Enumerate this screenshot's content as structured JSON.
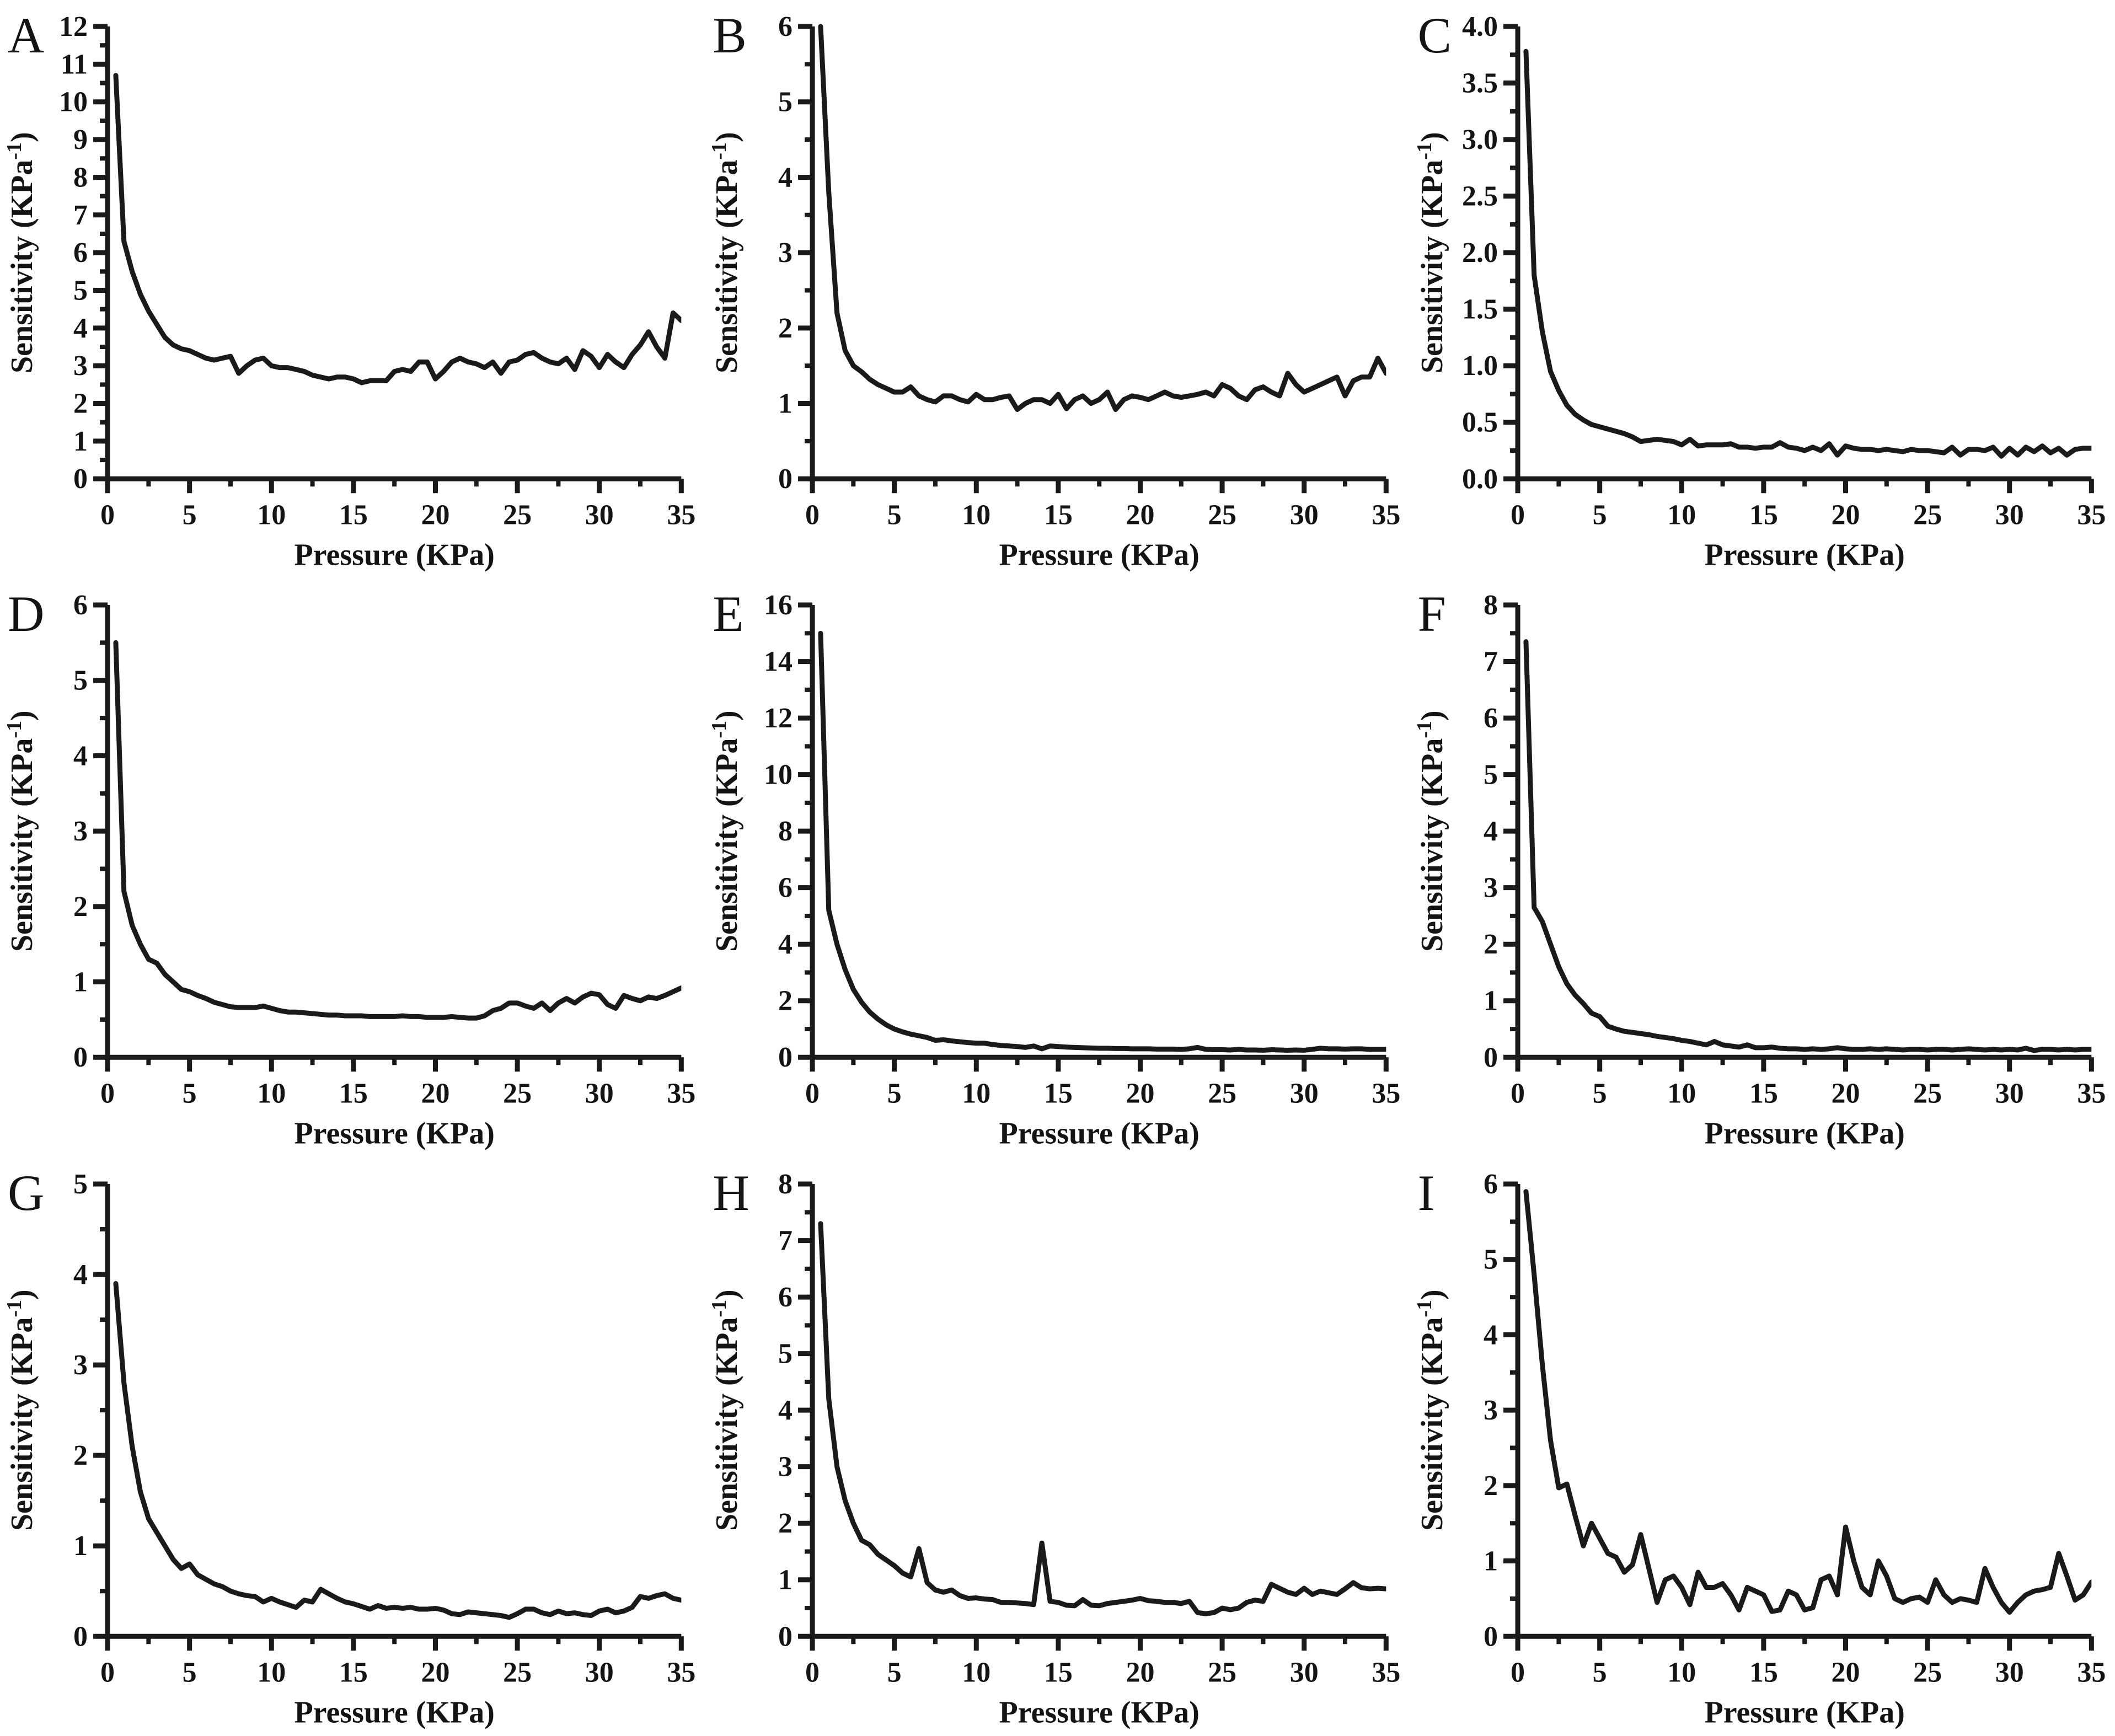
{
  "figure": {
    "description": "Nine-panel sensitivity versus pressure figure",
    "background": "#ffffff"
  },
  "chart_data": {
    "type": "line",
    "layout": "3x3-grid",
    "title": "",
    "xlabel": "Pressure (KPa)",
    "ylabel": "Sensitivity (KPa⁻¹)",
    "xlim": [
      0,
      35
    ],
    "xticks": [
      0,
      5,
      10,
      15,
      20,
      25,
      30,
      35
    ],
    "grid": "off",
    "legend": "none",
    "line_color": "#1a1a1a",
    "x": [
      0.5,
      1.0,
      1.5,
      2.0,
      2.5,
      3.0,
      3.5,
      4.0,
      4.5,
      5.0,
      5.5,
      6.0,
      6.5,
      7.0,
      7.5,
      8.0,
      8.5,
      9.0,
      9.5,
      10.0,
      10.5,
      11.0,
      11.5,
      12.0,
      12.5,
      13.0,
      13.5,
      14.0,
      14.5,
      15.0,
      15.5,
      16.0,
      16.5,
      17.0,
      17.5,
      18.0,
      18.5,
      19.0,
      19.5,
      20.0,
      20.5,
      21.0,
      21.5,
      22.0,
      22.5,
      23.0,
      23.5,
      24.0,
      24.5,
      25.0,
      25.5,
      26.0,
      26.5,
      27.0,
      27.5,
      28.0,
      28.5,
      29.0,
      29.5,
      30.0,
      30.5,
      31.0,
      31.5,
      32.0,
      32.5,
      33.0,
      33.5,
      34.0,
      34.5,
      35.0
    ],
    "panels": [
      {
        "label": "A",
        "ylim": [
          0,
          12
        ],
        "yticks": [
          0,
          1,
          2,
          3,
          4,
          5,
          6,
          7,
          8,
          9,
          10,
          11,
          12
        ],
        "ytick_decimals": 0,
        "y": [
          10.7,
          6.3,
          5.5,
          4.9,
          4.45,
          4.1,
          3.75,
          3.55,
          3.45,
          3.4,
          3.3,
          3.2,
          3.15,
          3.2,
          3.25,
          2.8,
          3.0,
          3.15,
          3.2,
          3.0,
          2.95,
          2.95,
          2.9,
          2.85,
          2.75,
          2.7,
          2.65,
          2.7,
          2.7,
          2.65,
          2.55,
          2.6,
          2.6,
          2.6,
          2.85,
          2.9,
          2.85,
          3.1,
          3.1,
          2.65,
          2.85,
          3.1,
          3.2,
          3.1,
          3.05,
          2.95,
          3.1,
          2.8,
          3.1,
          3.15,
          3.3,
          3.35,
          3.2,
          3.1,
          3.05,
          3.2,
          2.9,
          3.4,
          3.25,
          2.95,
          3.3,
          3.1,
          2.95,
          3.3,
          3.55,
          3.9,
          3.5,
          3.2,
          4.4,
          4.2
        ]
      },
      {
        "label": "B",
        "ylim": [
          0,
          6
        ],
        "yticks": [
          0,
          1,
          2,
          3,
          4,
          5,
          6
        ],
        "ytick_decimals": 0,
        "y": [
          6.0,
          3.8,
          2.2,
          1.7,
          1.5,
          1.42,
          1.32,
          1.25,
          1.2,
          1.15,
          1.15,
          1.22,
          1.1,
          1.05,
          1.02,
          1.1,
          1.1,
          1.05,
          1.02,
          1.12,
          1.05,
          1.05,
          1.08,
          1.1,
          0.92,
          1.0,
          1.05,
          1.05,
          1.0,
          1.12,
          0.93,
          1.05,
          1.1,
          1.0,
          1.05,
          1.15,
          0.92,
          1.05,
          1.1,
          1.08,
          1.05,
          1.1,
          1.15,
          1.1,
          1.08,
          1.1,
          1.12,
          1.15,
          1.1,
          1.25,
          1.2,
          1.1,
          1.05,
          1.18,
          1.22,
          1.15,
          1.1,
          1.4,
          1.25,
          1.15,
          1.2,
          1.25,
          1.3,
          1.35,
          1.1,
          1.3,
          1.35,
          1.35,
          1.6,
          1.4
        ]
      },
      {
        "label": "C",
        "ylim": [
          0,
          4
        ],
        "yticks": [
          0,
          0.5,
          1,
          1.5,
          2,
          2.5,
          3,
          3.5,
          4
        ],
        "ytick_decimals": 1,
        "y": [
          3.78,
          1.8,
          1.3,
          0.95,
          0.78,
          0.65,
          0.57,
          0.52,
          0.48,
          0.46,
          0.44,
          0.42,
          0.4,
          0.37,
          0.33,
          0.34,
          0.35,
          0.34,
          0.33,
          0.3,
          0.35,
          0.29,
          0.3,
          0.3,
          0.3,
          0.31,
          0.28,
          0.28,
          0.27,
          0.28,
          0.28,
          0.32,
          0.28,
          0.27,
          0.25,
          0.28,
          0.25,
          0.31,
          0.21,
          0.29,
          0.27,
          0.26,
          0.26,
          0.25,
          0.26,
          0.25,
          0.24,
          0.26,
          0.25,
          0.25,
          0.24,
          0.23,
          0.28,
          0.21,
          0.26,
          0.26,
          0.25,
          0.28,
          0.2,
          0.27,
          0.21,
          0.28,
          0.24,
          0.29,
          0.23,
          0.27,
          0.21,
          0.26,
          0.27,
          0.27
        ]
      },
      {
        "label": "D",
        "ylim": [
          0,
          6
        ],
        "yticks": [
          0,
          1,
          2,
          3,
          4,
          5,
          6
        ],
        "ytick_decimals": 0,
        "y": [
          5.5,
          2.2,
          1.75,
          1.5,
          1.3,
          1.25,
          1.1,
          1.0,
          0.9,
          0.87,
          0.82,
          0.78,
          0.73,
          0.7,
          0.67,
          0.66,
          0.66,
          0.66,
          0.68,
          0.65,
          0.62,
          0.6,
          0.6,
          0.59,
          0.58,
          0.57,
          0.56,
          0.56,
          0.55,
          0.55,
          0.55,
          0.54,
          0.54,
          0.54,
          0.54,
          0.55,
          0.54,
          0.54,
          0.53,
          0.53,
          0.53,
          0.54,
          0.53,
          0.52,
          0.52,
          0.55,
          0.62,
          0.65,
          0.72,
          0.72,
          0.68,
          0.65,
          0.72,
          0.62,
          0.72,
          0.78,
          0.72,
          0.8,
          0.85,
          0.83,
          0.7,
          0.65,
          0.82,
          0.78,
          0.75,
          0.8,
          0.78,
          0.82,
          0.87,
          0.92
        ]
      },
      {
        "label": "E",
        "ylim": [
          0,
          16
        ],
        "yticks": [
          0,
          2,
          4,
          6,
          8,
          10,
          12,
          14,
          16
        ],
        "ytick_decimals": 0,
        "y": [
          15.0,
          5.2,
          4.0,
          3.1,
          2.4,
          1.95,
          1.6,
          1.35,
          1.15,
          1.0,
          0.9,
          0.82,
          0.76,
          0.7,
          0.6,
          0.62,
          0.58,
          0.55,
          0.52,
          0.5,
          0.5,
          0.45,
          0.42,
          0.4,
          0.38,
          0.35,
          0.4,
          0.3,
          0.4,
          0.38,
          0.36,
          0.35,
          0.34,
          0.33,
          0.32,
          0.32,
          0.31,
          0.31,
          0.3,
          0.3,
          0.3,
          0.29,
          0.29,
          0.29,
          0.28,
          0.3,
          0.35,
          0.28,
          0.27,
          0.27,
          0.26,
          0.28,
          0.26,
          0.26,
          0.25,
          0.27,
          0.26,
          0.25,
          0.26,
          0.25,
          0.28,
          0.32,
          0.3,
          0.3,
          0.29,
          0.3,
          0.3,
          0.28,
          0.28,
          0.28
        ]
      },
      {
        "label": "F",
        "ylim": [
          0,
          8
        ],
        "yticks": [
          0,
          1,
          2,
          3,
          4,
          5,
          6,
          7,
          8
        ],
        "ytick_decimals": 0,
        "y": [
          7.35,
          2.65,
          2.4,
          2.0,
          1.6,
          1.3,
          1.1,
          0.95,
          0.78,
          0.72,
          0.55,
          0.5,
          0.46,
          0.44,
          0.42,
          0.4,
          0.37,
          0.35,
          0.33,
          0.3,
          0.28,
          0.25,
          0.22,
          0.28,
          0.22,
          0.2,
          0.18,
          0.22,
          0.17,
          0.17,
          0.18,
          0.16,
          0.15,
          0.15,
          0.14,
          0.15,
          0.14,
          0.15,
          0.17,
          0.15,
          0.14,
          0.14,
          0.15,
          0.14,
          0.15,
          0.14,
          0.13,
          0.14,
          0.14,
          0.13,
          0.14,
          0.14,
          0.13,
          0.14,
          0.15,
          0.14,
          0.13,
          0.14,
          0.13,
          0.14,
          0.13,
          0.16,
          0.12,
          0.14,
          0.14,
          0.13,
          0.14,
          0.13,
          0.14,
          0.14
        ]
      },
      {
        "label": "G",
        "ylim": [
          0,
          5
        ],
        "yticks": [
          0,
          1,
          2,
          3,
          4,
          5
        ],
        "ytick_decimals": 0,
        "y": [
          3.9,
          2.8,
          2.1,
          1.6,
          1.3,
          1.15,
          1.0,
          0.85,
          0.75,
          0.8,
          0.68,
          0.63,
          0.58,
          0.55,
          0.5,
          0.47,
          0.45,
          0.44,
          0.38,
          0.42,
          0.38,
          0.35,
          0.32,
          0.4,
          0.38,
          0.52,
          0.47,
          0.42,
          0.38,
          0.36,
          0.33,
          0.3,
          0.34,
          0.31,
          0.32,
          0.31,
          0.32,
          0.3,
          0.3,
          0.31,
          0.29,
          0.25,
          0.24,
          0.27,
          0.26,
          0.25,
          0.24,
          0.23,
          0.21,
          0.25,
          0.3,
          0.3,
          0.26,
          0.24,
          0.28,
          0.25,
          0.26,
          0.24,
          0.23,
          0.28,
          0.3,
          0.26,
          0.28,
          0.32,
          0.44,
          0.42,
          0.45,
          0.47,
          0.42,
          0.4
        ]
      },
      {
        "label": "H",
        "ylim": [
          0,
          8
        ],
        "yticks": [
          0,
          1,
          2,
          3,
          4,
          5,
          6,
          7,
          8
        ],
        "ytick_decimals": 0,
        "y": [
          7.3,
          4.2,
          3.0,
          2.4,
          2.0,
          1.7,
          1.62,
          1.45,
          1.35,
          1.25,
          1.12,
          1.05,
          1.55,
          0.95,
          0.82,
          0.78,
          0.82,
          0.72,
          0.67,
          0.68,
          0.66,
          0.65,
          0.6,
          0.6,
          0.59,
          0.58,
          0.56,
          1.65,
          0.62,
          0.6,
          0.55,
          0.54,
          0.65,
          0.55,
          0.54,
          0.58,
          0.6,
          0.62,
          0.64,
          0.67,
          0.63,
          0.62,
          0.6,
          0.6,
          0.58,
          0.62,
          0.42,
          0.4,
          0.42,
          0.5,
          0.47,
          0.5,
          0.6,
          0.64,
          0.62,
          0.92,
          0.85,
          0.78,
          0.74,
          0.85,
          0.74,
          0.8,
          0.77,
          0.74,
          0.84,
          0.95,
          0.86,
          0.84,
          0.85,
          0.84
        ]
      },
      {
        "label": "I",
        "ylim": [
          0,
          6
        ],
        "yticks": [
          0,
          1,
          2,
          3,
          4,
          5,
          6
        ],
        "ytick_decimals": 0,
        "y": [
          5.9,
          4.8,
          3.6,
          2.6,
          1.97,
          2.02,
          1.6,
          1.2,
          1.5,
          1.3,
          1.1,
          1.05,
          0.85,
          0.95,
          1.35,
          0.9,
          0.45,
          0.75,
          0.8,
          0.65,
          0.42,
          0.85,
          0.65,
          0.65,
          0.7,
          0.55,
          0.35,
          0.65,
          0.6,
          0.55,
          0.33,
          0.35,
          0.6,
          0.55,
          0.35,
          0.38,
          0.75,
          0.8,
          0.55,
          1.45,
          1.0,
          0.65,
          0.55,
          1.0,
          0.8,
          0.5,
          0.45,
          0.5,
          0.52,
          0.45,
          0.75,
          0.55,
          0.45,
          0.5,
          0.48,
          0.45,
          0.9,
          0.65,
          0.45,
          0.32,
          0.45,
          0.55,
          0.6,
          0.62,
          0.65,
          1.1,
          0.8,
          0.48,
          0.55,
          0.72
        ]
      }
    ]
  }
}
